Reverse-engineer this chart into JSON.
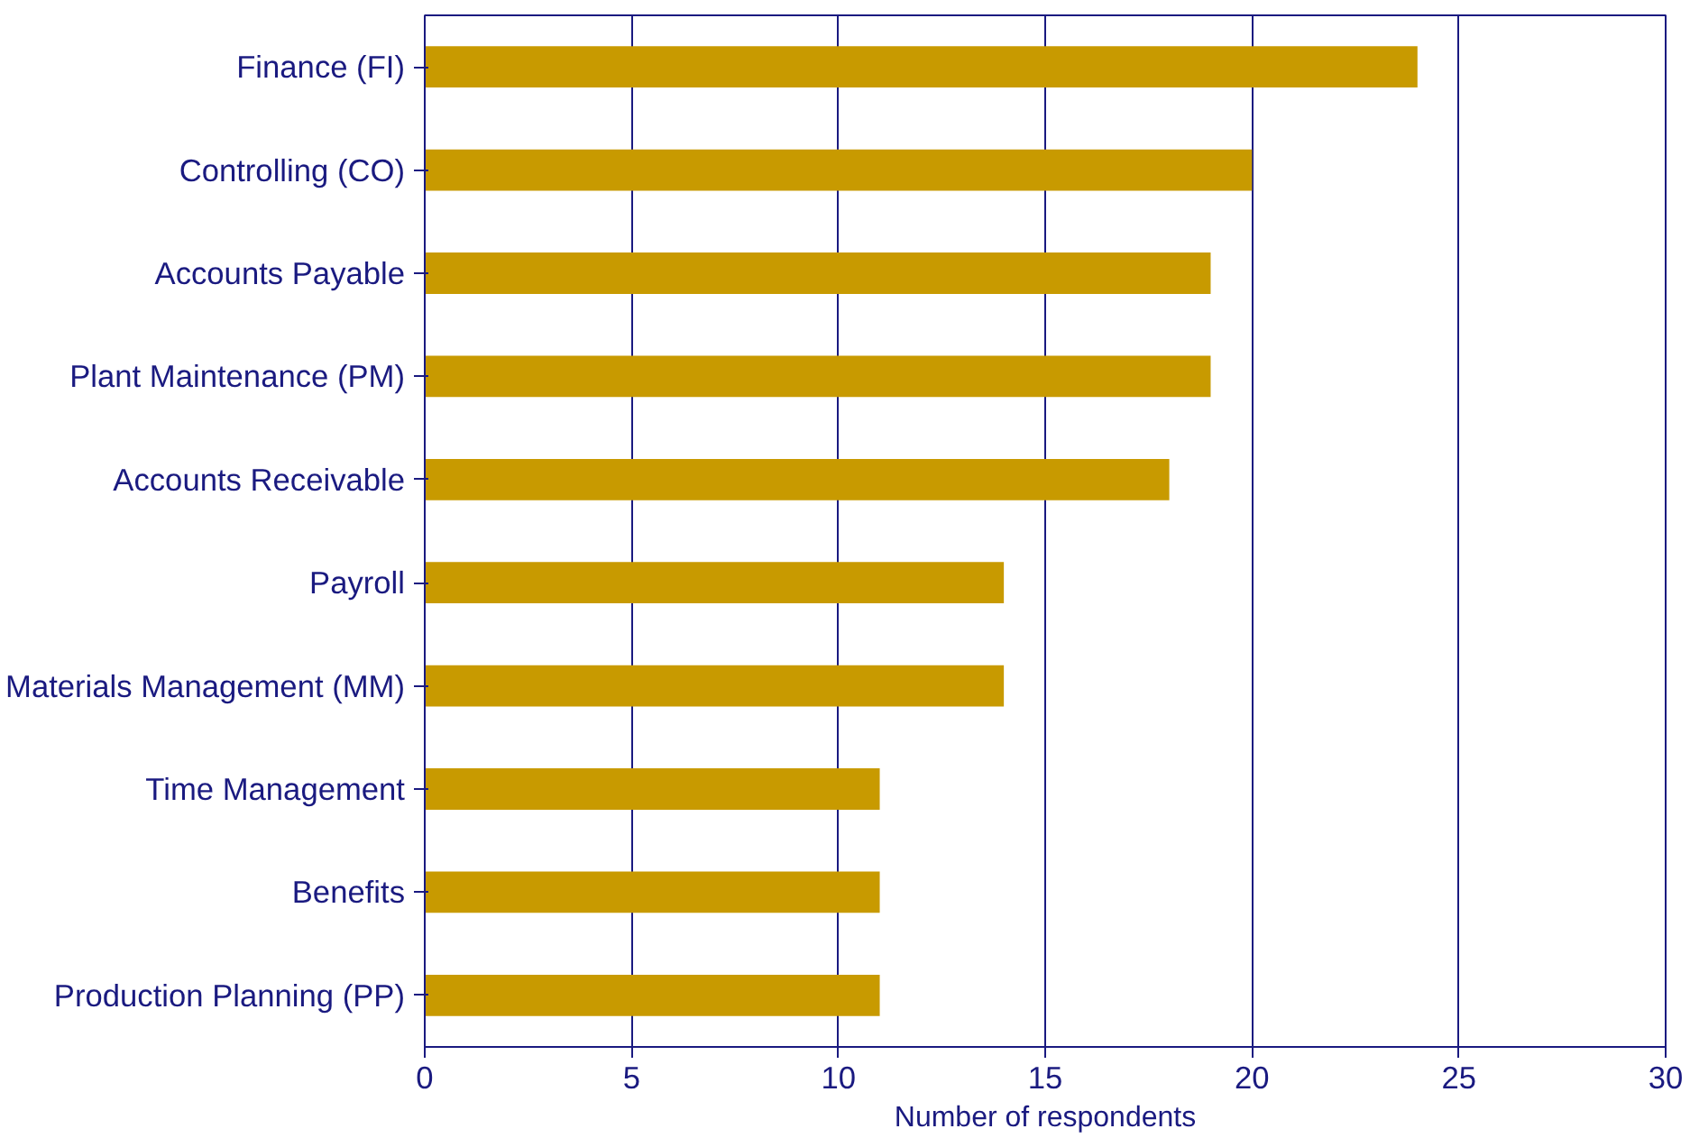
{
  "chart_data": {
    "type": "bar",
    "orientation": "horizontal",
    "categories": [
      "Finance (FI)",
      "Controlling (CO)",
      "Accounts Payable",
      "Plant Maintenance (PM)",
      "Accounts Receivable",
      "Payroll",
      "Materials Management (MM)",
      "Time Management",
      "Benefits",
      "Production Planning (PP)"
    ],
    "values": [
      24,
      20,
      19,
      19,
      18,
      14,
      14,
      11,
      11,
      11
    ],
    "color": "#c89a00",
    "xlabel": "Number of respondents",
    "xlim": [
      0,
      30
    ],
    "xticks": [
      0,
      5,
      10,
      15,
      20,
      25,
      30
    ],
    "grid": "x"
  }
}
